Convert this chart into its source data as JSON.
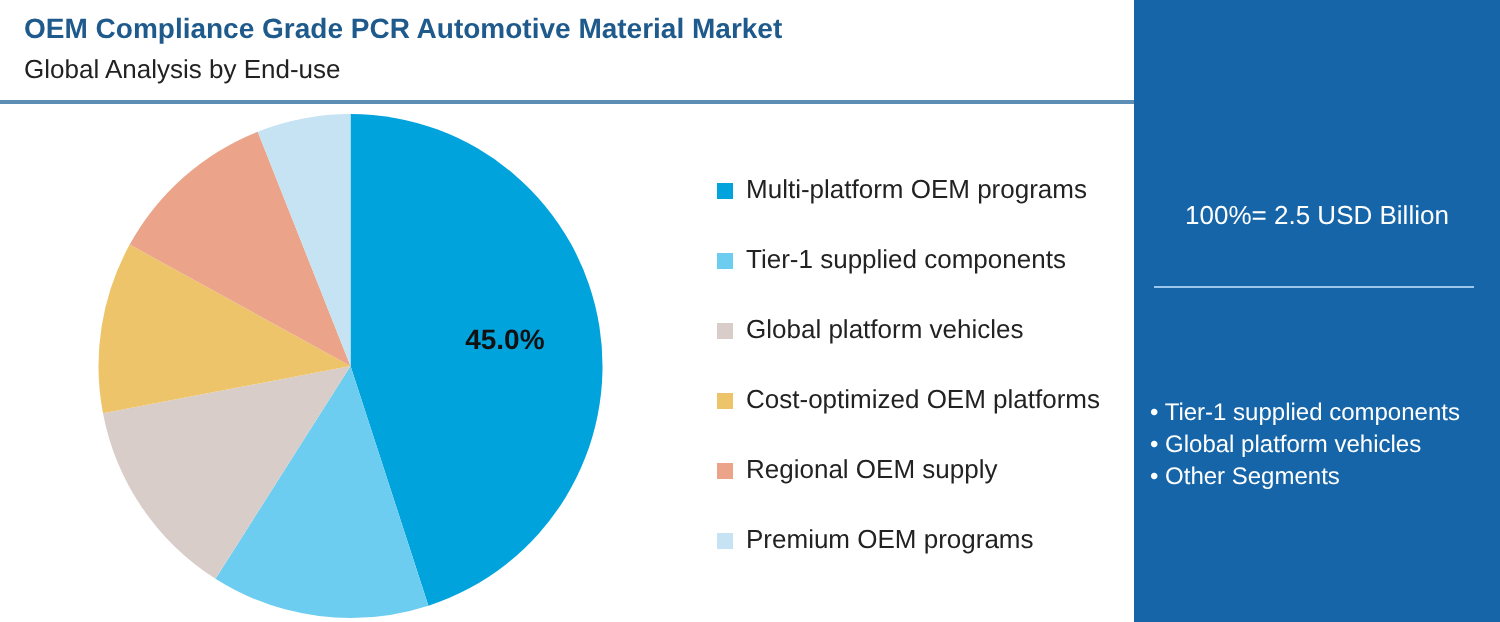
{
  "chart_data": {
    "type": "pie",
    "title": "OEM Compliance Grade PCR Automotive Material Market",
    "subtitle": "Global Analysis by End-use",
    "categories": [
      "Multi-platform OEM programs",
      "Tier-1 supplied components",
      "Global platform vehicles",
      "Cost-optimized OEM platforms",
      "Regional OEM supply",
      "Premium OEM programs"
    ],
    "values": [
      45,
      14,
      13,
      11,
      11,
      6
    ],
    "colors": [
      "#00a3dc",
      "#6dcdf0",
      "#d8cdc8",
      "#edc46a",
      "#eba48a",
      "#c5e3f3"
    ],
    "value_labels": [
      "45.0%",
      null,
      null,
      null,
      null,
      null
    ],
    "legend": "right",
    "annotations": [
      "100%= 2.5 USD Billion",
      "• Tier-1 supplied components",
      "• Global platform vehicles",
      "• Other Segments"
    ]
  }
}
